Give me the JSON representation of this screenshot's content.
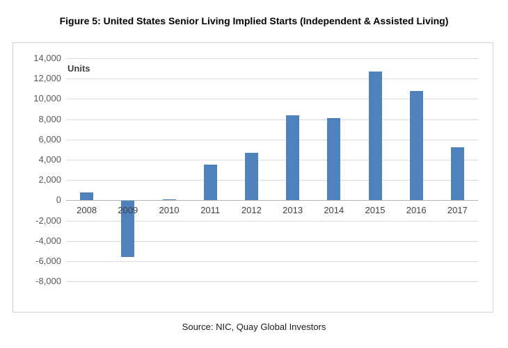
{
  "title": "Figure 5: United States Senior Living Implied Starts (Independent & Assisted Living)",
  "source": "Source: NIC, Quay Global Investors",
  "chart_data": {
    "type": "bar",
    "title": "Figure 5: United States Senior Living Implied Starts (Independent & Assisted Living)",
    "units_label": "Units",
    "xlabel": "",
    "ylabel": "Units",
    "categories": [
      "2008",
      "2009",
      "2010",
      "2011",
      "2012",
      "2013",
      "2014",
      "2015",
      "2016",
      "2017"
    ],
    "values": [
      800,
      -5500,
      100,
      3500,
      4700,
      8400,
      8100,
      12700,
      10800,
      5200
    ],
    "ylim": [
      -8000,
      14000
    ],
    "ytick_step": 2000,
    "yticks": [
      {
        "value": 14000,
        "label": "14,000"
      },
      {
        "value": 12000,
        "label": "12,000"
      },
      {
        "value": 10000,
        "label": "10,000"
      },
      {
        "value": 8000,
        "label": "8,000"
      },
      {
        "value": 6000,
        "label": "6,000"
      },
      {
        "value": 4000,
        "label": "4,000"
      },
      {
        "value": 2000,
        "label": "2,000"
      },
      {
        "value": 0,
        "label": "0"
      },
      {
        "value": -2000,
        "label": "-2,000"
      },
      {
        "value": -4000,
        "label": "-4,000"
      },
      {
        "value": -6000,
        "label": "-6,000"
      },
      {
        "value": -8000,
        "label": "-8,000"
      }
    ],
    "grid": true,
    "legend": "none",
    "bar_color": "#4F81BD",
    "gridline_color": "#D9D9D9",
    "zero_line_color": "#B0B0B0",
    "frame_border_color": "#D2D2D2",
    "y_label_color": "#595959",
    "x_label_color": "#404040"
  }
}
